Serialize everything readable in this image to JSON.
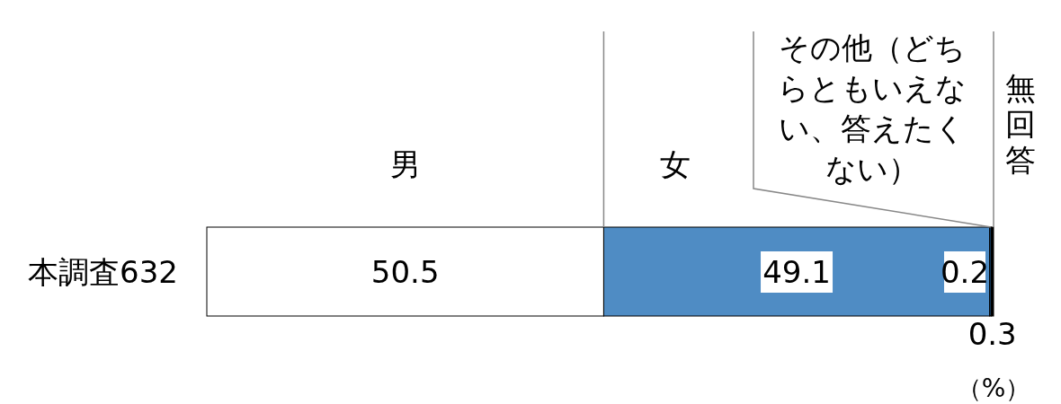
{
  "chart_data": {
    "type": "bar",
    "orientation": "horizontal",
    "stacked": true,
    "categories": [
      "本調査632"
    ],
    "series": [
      {
        "name": "男",
        "color": "#ffffff",
        "values": [
          50.5
        ]
      },
      {
        "name": "女",
        "color": "#4f8cc4",
        "values": [
          49.1
        ]
      },
      {
        "name": "その他（どちらともいえない、答えたくない）",
        "color": "#1d4f7e",
        "values": [
          0.2
        ]
      },
      {
        "name": "無回答",
        "color": "#000000",
        "values": [
          0.3
        ]
      }
    ],
    "data_labels": true,
    "annotations": [
      "（%）"
    ]
  }
}
